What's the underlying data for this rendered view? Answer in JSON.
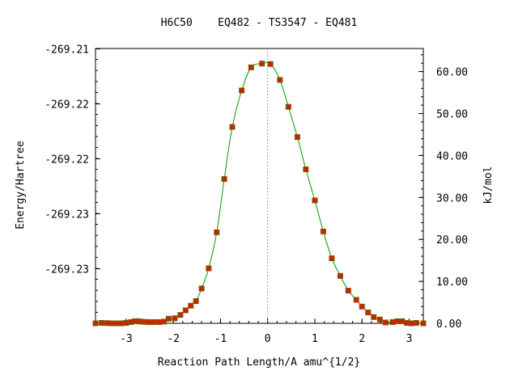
{
  "chart_data": {
    "type": "scatter",
    "title": "H6C50    EQ482 - TS3547 - EQ481",
    "xlabel": "Reaction Path Length/A amu^{1/2}",
    "ylabel_left": "Energy/Hartree",
    "ylabel_right": "kJ/mol",
    "xlim": [
      -3.65,
      3.3
    ],
    "ylim_kjmol": [
      0,
      65.5
    ],
    "x_ticks": [
      -3,
      -2,
      -1,
      0,
      1,
      2,
      3
    ],
    "x_tick_labels": [
      "-3",
      "-2",
      "-1",
      "0",
      "1",
      "2",
      "3"
    ],
    "left_ticks_kjmol": [
      13.0,
      26.1,
      39.2,
      52.3,
      65.4
    ],
    "left_tick_labels": [
      "-269.23",
      "-269.23",
      "-269.22",
      "-269.22",
      "-269.21"
    ],
    "right_ticks": [
      0,
      10,
      20,
      30,
      40,
      50,
      60
    ],
    "right_tick_labels": [
      "0.00",
      "10.00",
      "20.00",
      "30.00",
      "40.00",
      "50.00",
      "60.00"
    ],
    "ts_marker_x": 0,
    "grid": false,
    "colors": {
      "curve": "#00a000",
      "point_fill": "#cc2200",
      "point_edge": "#7a5a00",
      "ts_line": "#999999"
    },
    "series": [
      {
        "x": [
          -3.65,
          -3.52,
          -3.4,
          -3.3,
          -3.2,
          -3.1,
          -3.0,
          -2.9,
          -2.82,
          -2.75,
          -2.68,
          -2.6,
          -2.52,
          -2.42,
          -2.3,
          -2.2,
          -2.1,
          -1.97,
          -1.85,
          -1.74,
          -1.63,
          -1.52,
          -1.4,
          -1.25,
          -1.08,
          -0.92,
          -0.75,
          -0.55,
          -0.35,
          -0.12,
          0.06,
          0.26,
          0.44,
          0.63,
          0.81,
          1.0,
          1.18,
          1.36,
          1.54,
          1.71,
          1.88,
          2.0,
          2.13,
          2.25,
          2.38,
          2.5,
          2.65,
          2.75,
          2.85,
          2.95,
          3.05,
          3.15,
          3.3
        ],
        "y": [
          0.0,
          0.1,
          0.05,
          0.0,
          0.0,
          0.0,
          0.1,
          0.3,
          0.5,
          0.5,
          0.4,
          0.35,
          0.3,
          0.3,
          0.3,
          0.4,
          1.1,
          1.2,
          2.0,
          3.1,
          4.2,
          5.3,
          8.3,
          13.1,
          21.7,
          34.4,
          46.8,
          55.5,
          61.0,
          61.9,
          61.8,
          58.0,
          51.6,
          44.4,
          36.7,
          29.3,
          21.9,
          15.5,
          11.3,
          7.8,
          5.6,
          4.0,
          2.6,
          1.5,
          0.9,
          0.2,
          0.3,
          0.5,
          0.5,
          0.1,
          0.0,
          0.1,
          0.0
        ]
      }
    ]
  }
}
